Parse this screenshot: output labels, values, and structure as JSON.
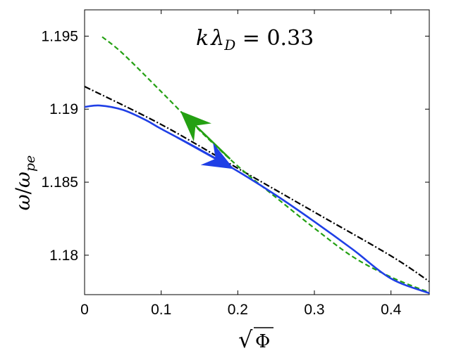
{
  "chart_data": {
    "type": "line",
    "title": "",
    "annotation": {
      "text_k": "k",
      "text_lambda": "λ",
      "text_sub": "D",
      "text_eq": " = 0.33"
    },
    "xlabel": {
      "sqrt": "√",
      "symbol": "Φ"
    },
    "ylabel": {
      "omega": "ω",
      "slash": "/",
      "omega2": "ω",
      "sub": "pe"
    },
    "xlim": [
      0,
      0.45
    ],
    "ylim": [
      1.1773,
      1.1968
    ],
    "xticks": [
      0,
      0.1,
      0.2,
      0.3,
      0.4
    ],
    "xtick_labels": [
      "0",
      "0.1",
      "0.2",
      "0.3",
      "0.4"
    ],
    "yticks": [
      1.18,
      1.185,
      1.19,
      1.195
    ],
    "ytick_labels": [
      "1.18",
      "1.185",
      "1.19",
      "1.195"
    ],
    "grid": false,
    "series": [
      {
        "color": "#1f3fe6",
        "style": "solid",
        "x": [
          0,
          0.02,
          0.05,
          0.08,
          0.1,
          0.15,
          0.2,
          0.25,
          0.3,
          0.35,
          0.4,
          0.45
        ],
        "y": [
          1.19015,
          1.19025,
          1.18995,
          1.18925,
          1.18865,
          1.18725,
          1.18575,
          1.1841,
          1.1823,
          1.1804,
          1.1784,
          1.1774
        ]
      },
      {
        "color": "#000000",
        "style": "dashdot",
        "x": [
          0,
          0.1,
          0.2,
          0.3,
          0.4,
          0.45
        ],
        "y": [
          1.19155,
          1.18895,
          1.18595,
          1.18295,
          1.17995,
          1.1782
        ]
      },
      {
        "color": "#24a012",
        "style": "dashed",
        "x": [
          0.023,
          0.05,
          0.1,
          0.15,
          0.2,
          0.25,
          0.3,
          0.35,
          0.4,
          0.45
        ],
        "y": [
          1.19495,
          1.1938,
          1.1912,
          1.18855,
          1.1861,
          1.18395,
          1.18185,
          1.1799,
          1.1785,
          1.17745
        ]
      }
    ],
    "arrows": [
      {
        "color": "#24a012",
        "series": 2,
        "tail_x": 0.19,
        "head_x": 0.125
      },
      {
        "color": "#1f3fe6",
        "series": 0,
        "tail_x": 0.12,
        "head_x": 0.195
      }
    ]
  }
}
